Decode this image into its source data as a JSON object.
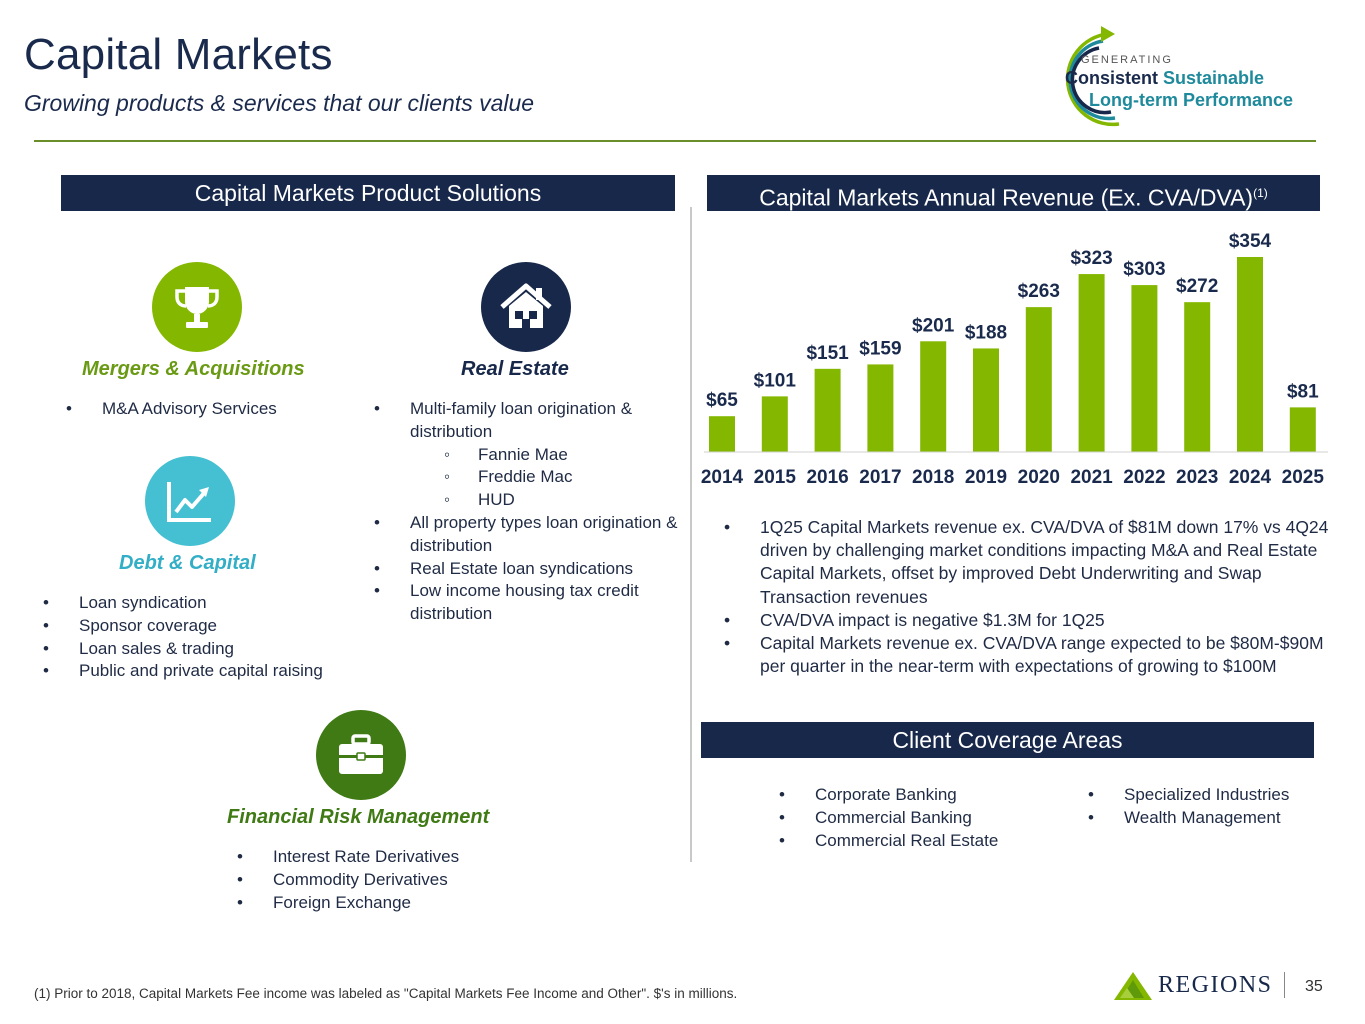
{
  "header": {
    "title": "Capital Markets",
    "subtitle": "Growing products & services that our clients value"
  },
  "badge": {
    "generating": "GENERATING",
    "line1a": "Consistent",
    "line1b": "Sustainable",
    "line2": "Long-term Performance"
  },
  "sections": {
    "products": "Capital Markets Product Solutions",
    "revenue": "Capital Markets Annual Revenue (Ex. CVA/DVA)",
    "revenue_sup": "(1)",
    "coverage": "Client Coverage Areas"
  },
  "products": {
    "ma": {
      "title": "Mergers & Acquisitions",
      "items": [
        "M&A Advisory Services"
      ]
    },
    "real_estate": {
      "title": "Real Estate",
      "items": [
        "Multi-family loan origination & distribution",
        "Fannie Mae",
        "Freddie Mac",
        "HUD",
        "All property types loan origination & distribution",
        "Real Estate loan syndications",
        "Low income housing tax credit distribution"
      ]
    },
    "debt": {
      "title": "Debt & Capital",
      "items": [
        "Loan syndication",
        "Sponsor coverage",
        "Loan sales & trading",
        "Public and private capital raising"
      ]
    },
    "frm": {
      "title": "Financial Risk Management",
      "items": [
        "Interest Rate Derivatives",
        "Commodity Derivatives",
        "Foreign Exchange"
      ]
    }
  },
  "chart_data": {
    "type": "bar",
    "title": "Capital Markets Annual Revenue (Ex. CVA/DVA)",
    "categories": [
      "2014",
      "2015",
      "2016",
      "2017",
      "2018",
      "2019",
      "2020",
      "2021",
      "2022",
      "2023",
      "2024",
      "2025"
    ],
    "values": [
      65,
      101,
      151,
      159,
      201,
      188,
      263,
      323,
      303,
      272,
      354,
      81
    ],
    "data_labels": [
      "$65",
      "$101",
      "$151",
      "$159",
      "$201",
      "$188",
      "$263",
      "$323",
      "$303",
      "$272",
      "$354",
      "$81"
    ],
    "unit": "$ millions",
    "xlabel": "",
    "ylabel": "",
    "ylim": [
      0,
      354
    ],
    "grid": false,
    "color": "#84b700"
  },
  "notes": [
    "1Q25 Capital Markets revenue ex. CVA/DVA of $81M down 17% vs 4Q24 driven by challenging market conditions impacting M&A and Real Estate Capital Markets, offset by improved Debt Underwriting and Swap Transaction revenues",
    "CVA/DVA impact is negative $1.3M for 1Q25",
    "Capital Markets revenue ex. CVA/DVA range expected to be $80M-$90M per quarter in the near-term with expectations of growing to $100M"
  ],
  "coverage": {
    "left": [
      "Corporate Banking",
      "Commercial Banking",
      "Commercial Real Estate"
    ],
    "right": [
      "Specialized Industries",
      "Wealth Management"
    ]
  },
  "footer": {
    "footnote": "(1) Prior to 2018, Capital Markets Fee income was labeled as \"Capital Markets Fee Income and Other\". $'s in millions.",
    "brand": "REGIONS",
    "page": "35"
  },
  "colors": {
    "navy": "#17284a",
    "lime": "#84b700",
    "teal": "#45bfd2",
    "green_dark": "#3f7a14",
    "green_label": "#6a9a14"
  }
}
